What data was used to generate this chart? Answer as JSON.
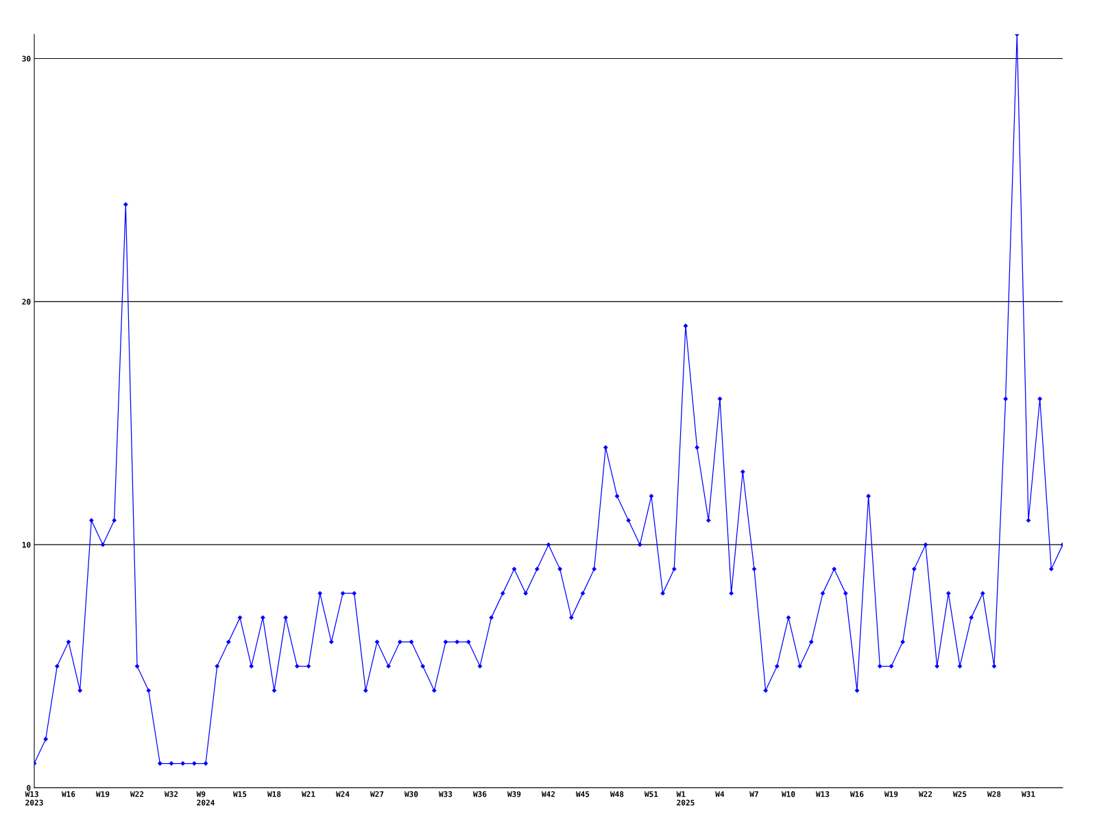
{
  "chart_data": {
    "type": "line",
    "categories": [
      "W13\n2023",
      null,
      null,
      "W16",
      null,
      null,
      "W19",
      null,
      null,
      "W22",
      null,
      null,
      "W32",
      null,
      null,
      "W9\n2024",
      null,
      null,
      "W15",
      null,
      null,
      "W18",
      null,
      null,
      "W21",
      null,
      null,
      "W24",
      null,
      null,
      "W27",
      null,
      null,
      "W30",
      null,
      null,
      "W33",
      null,
      null,
      "W36",
      null,
      null,
      "W39",
      null,
      null,
      "W42",
      null,
      null,
      "W45",
      null,
      null,
      "W48",
      null,
      null,
      "W51",
      null,
      null,
      "W1\n2025",
      null,
      null,
      "W4",
      null,
      null,
      "W7",
      null,
      null,
      "W10",
      null,
      null,
      "W13",
      null,
      null,
      "W16",
      null,
      null,
      "W19",
      null,
      null,
      "W22",
      null,
      null,
      "W25",
      null,
      null,
      "W28",
      null,
      null,
      "W31",
      null,
      null,
      null
    ],
    "series": [
      {
        "color": "#0000ff",
        "values": [
          1,
          2,
          5,
          6,
          4,
          11,
          10,
          11,
          24,
          5,
          4,
          1,
          1,
          1,
          1,
          1,
          5,
          6,
          7,
          5,
          7,
          4,
          7,
          5,
          5,
          8,
          6,
          8,
          8,
          4,
          6,
          5,
          6,
          6,
          5,
          4,
          6,
          6,
          6,
          5,
          7,
          8,
          9,
          8,
          9,
          10,
          9,
          7,
          8,
          9,
          14,
          12,
          11,
          10,
          12,
          8,
          9,
          19,
          14,
          11,
          16,
          8,
          13,
          9,
          4,
          5,
          7,
          5,
          6,
          8,
          9,
          8,
          4,
          12,
          5,
          5,
          6,
          9,
          10,
          5,
          8,
          5,
          7,
          8,
          5,
          16,
          31,
          11,
          16,
          9,
          10
        ]
      }
    ],
    "ylim": [
      0,
      31
    ],
    "yticks": [
      0,
      10,
      20,
      30
    ],
    "grid": "y",
    "marker": "diamond",
    "line_style": "solid"
  }
}
